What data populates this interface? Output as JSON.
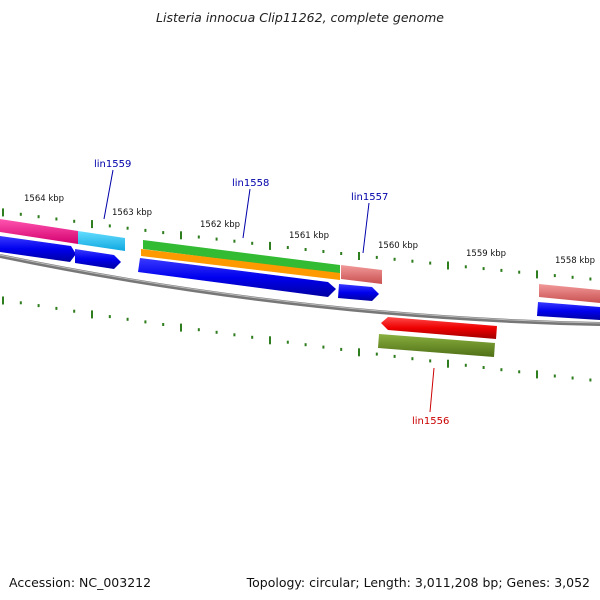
{
  "title": "Listeria innocua Clip11262, complete genome",
  "footer": {
    "accession": "Accession: NC_003212",
    "summary": "Topology: circular; Length: 3,011,208 bp; Genes: 3,052"
  },
  "scale_labels": [
    "1564 kbp",
    "1563 kbp",
    "1562 kbp",
    "1561 kbp",
    "1560 kbp",
    "1559 kbp",
    "1558 kbp"
  ],
  "gene_labels": [
    {
      "name": "lin1559",
      "color": "#0000aa"
    },
    {
      "name": "lin1558",
      "color": "#0000aa"
    },
    {
      "name": "lin1557",
      "color": "#0000aa"
    },
    {
      "name": "lin1556",
      "color": "#cc0000"
    }
  ],
  "colors": {
    "backbone": "#888888",
    "tick": "#2e7d1e",
    "cds_forward": "#0000ee",
    "cds_reverse": "#ee0000",
    "pink": "#ff2d9b",
    "cyan": "#33ccff",
    "green": "#33bb33",
    "orange": "#ff9900",
    "salmon": "#ee7777",
    "olive": "#6b8e23"
  }
}
